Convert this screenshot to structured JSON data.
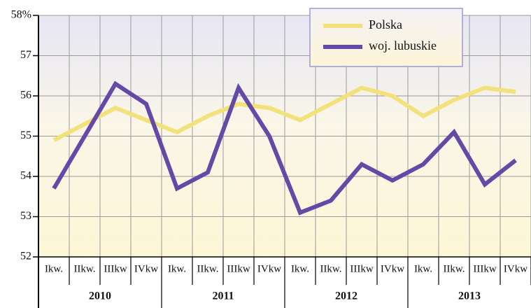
{
  "chart_data": {
    "type": "line",
    "categories": [
      "Ikw.",
      "IIkw.",
      "IIIkw",
      "IVkw",
      "Ikw.",
      "IIkw.",
      "IIIkw",
      "IVkw",
      "Ikw.",
      "IIkw.",
      "IIIkw",
      "IVkw",
      "Ikw.",
      "IIkw.",
      "IIIkw",
      "IVkw"
    ],
    "groups": [
      "2010",
      "2011",
      "2012",
      "2013"
    ],
    "series": [
      {
        "name": "Polska",
        "color": "#f3e27c",
        "values": [
          54.9,
          55.3,
          55.7,
          55.4,
          55.1,
          55.5,
          55.8,
          55.7,
          55.4,
          55.8,
          56.2,
          56.0,
          55.5,
          55.9,
          56.2,
          56.1
        ]
      },
      {
        "name": "woj. lubuskie",
        "color": "#6549a6",
        "values": [
          53.7,
          55.0,
          56.3,
          55.8,
          53.7,
          54.1,
          56.2,
          55.0,
          53.1,
          53.4,
          54.3,
          53.9,
          54.3,
          55.1,
          53.8,
          54.4
        ]
      }
    ],
    "ylim": [
      52,
      58
    ],
    "yticks": [
      52,
      53,
      54,
      55,
      56,
      57,
      {
        "value": 58,
        "label": "58%"
      }
    ],
    "grid": true,
    "legend": "top-right"
  }
}
